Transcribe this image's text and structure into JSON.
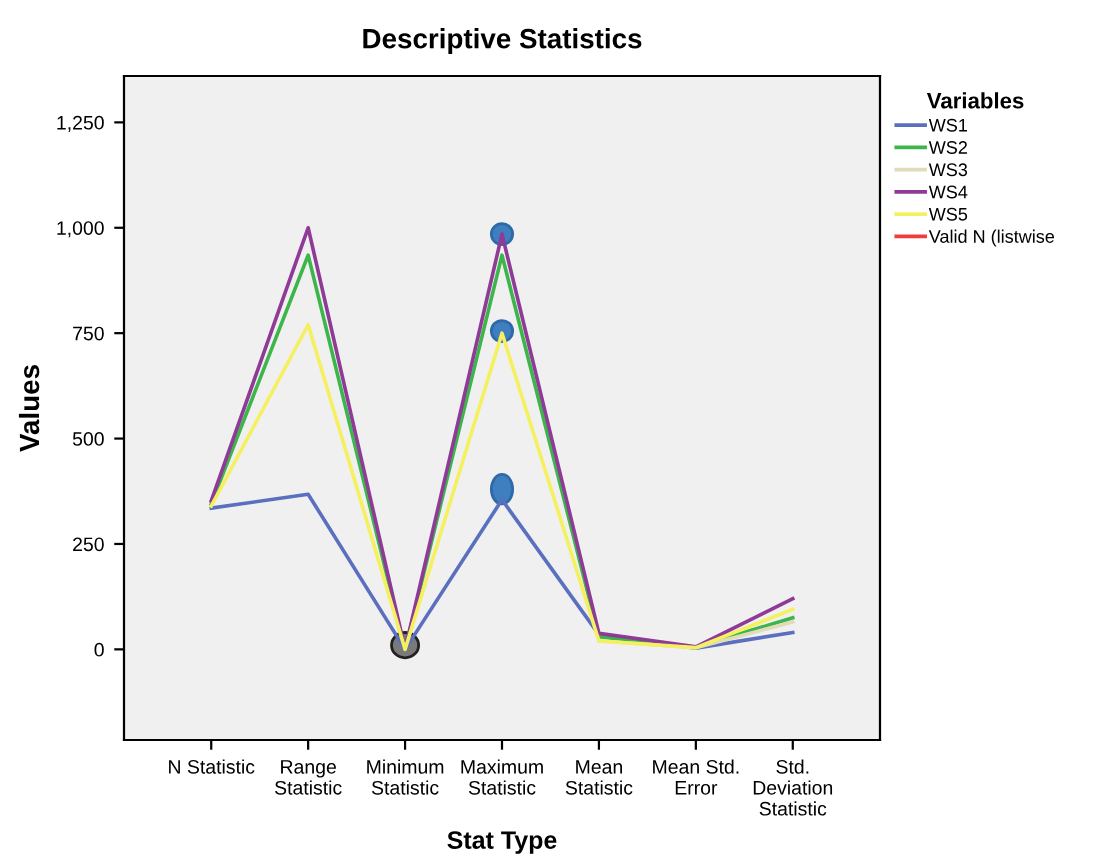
{
  "chart_data": {
    "type": "line",
    "title": "Descriptive Statistics",
    "xlabel": "Stat Type",
    "ylabel": "Values",
    "legend_title": "Variables",
    "legend": "right",
    "categories": [
      "N Statistic",
      "Range\nStatistic",
      "Minimum\nStatistic",
      "Maximum\nStatistic",
      "Mean\nStatistic",
      "Mean Std.\nError",
      "Std.\nDeviation\nStatistic"
    ],
    "series": [
      {
        "name": "WS1",
        "color": "#5b6fbf",
        "values": [
          335,
          368,
          0,
          355,
          35,
          3,
          40
        ]
      },
      {
        "name": "WS2",
        "color": "#3cb54a",
        "values": [
          345,
          935,
          0,
          935,
          30,
          5,
          75
        ]
      },
      {
        "name": "WS3",
        "color": "#e0dcb8",
        "values": [
          null,
          null,
          null,
          null,
          20,
          4,
          65
        ]
      },
      {
        "name": "WS4",
        "color": "#8e3a96",
        "values": [
          352,
          1000,
          0,
          985,
          38,
          6,
          120
        ]
      },
      {
        "name": "WS5",
        "color": "#f5f060",
        "values": [
          340,
          770,
          0,
          750,
          20,
          4,
          95
        ]
      },
      {
        "name": "Valid N (listwise",
        "color": "#f03c3c",
        "values": [
          null,
          null,
          null,
          null,
          null,
          null,
          null
        ]
      }
    ],
    "ylim": [
      -215,
      1360
    ],
    "yticks": [
      {
        "value": 0,
        "label": "0"
      },
      {
        "value": 250,
        "label": "250"
      },
      {
        "value": 500,
        "label": "500"
      },
      {
        "value": 750,
        "label": "750"
      },
      {
        "value": 1000,
        "label": "1,000"
      },
      {
        "value": 1250,
        "label": "1,250"
      }
    ],
    "grid": false,
    "marker": "none",
    "line_style": "solid"
  }
}
